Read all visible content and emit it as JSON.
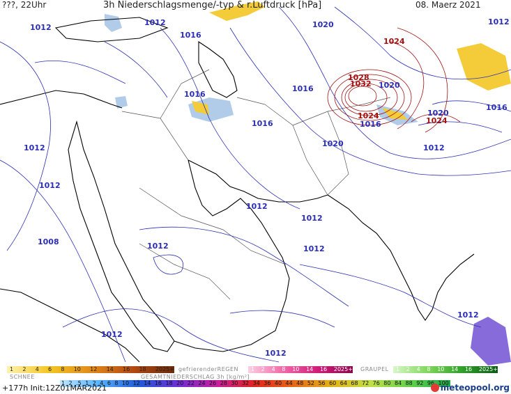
{
  "header": {
    "left": "???, 22Uhr",
    "title": "3h Niederschlagsmenge/-typ & r.Luftdruck [hPa]",
    "date": "08. Maerz 2021"
  },
  "isobar_labels": [
    {
      "text": "1012",
      "color": "#2b2fb5"
    },
    {
      "text": "1012",
      "color": "#2b2fb5"
    },
    {
      "text": "1016",
      "color": "#2b2fb5"
    },
    {
      "text": "1020",
      "color": "#2b2fb5"
    },
    {
      "text": "1024",
      "color": "#a31010"
    },
    {
      "text": "1012",
      "color": "#2b2fb5"
    },
    {
      "text": "1016",
      "color": "#2b2fb5"
    },
    {
      "text": "1028",
      "color": "#a31010"
    },
    {
      "text": "1032",
      "color": "#a31010"
    },
    {
      "text": "1020",
      "color": "#2b2fb5"
    },
    {
      "text": "1016",
      "color": "#2b2fb5"
    },
    {
      "text": "1016",
      "color": "#2b2fb5"
    },
    {
      "text": "1024",
      "color": "#a31010"
    },
    {
      "text": "1020",
      "color": "#2b2fb5"
    },
    {
      "text": "1016",
      "color": "#2b2fb5"
    },
    {
      "text": "1024",
      "color": "#a31010"
    },
    {
      "text": "1016",
      "color": "#2b2fb5"
    },
    {
      "text": "1012",
      "color": "#2b2fb5"
    },
    {
      "text": "1012",
      "color": "#2b2fb5"
    },
    {
      "text": "1020",
      "color": "#2b2fb5"
    },
    {
      "text": "1012",
      "color": "#2b2fb5"
    },
    {
      "text": "1012",
      "color": "#2b2fb5"
    },
    {
      "text": "1012",
      "color": "#2b2fb5"
    },
    {
      "text": "1008",
      "color": "#2b2fb5"
    },
    {
      "text": "1012",
      "color": "#2b2fb5"
    },
    {
      "text": "1012",
      "color": "#2b2fb5"
    },
    {
      "text": "1012",
      "color": "#2b2fb5"
    },
    {
      "text": "1012",
      "color": "#2b2fb5"
    },
    {
      "text": "1012",
      "color": "#2b2fb5"
    }
  ],
  "legend": {
    "snow_label": "SCHNEE",
    "snow_scale": [
      "1",
      "2",
      "4",
      "6",
      "8",
      "10",
      "12",
      "14",
      "16",
      "18",
      "2025+"
    ],
    "freezing_rain_label": "gefrierenderREGEN",
    "freezing_rain_scale": [
      "1",
      "2",
      "4",
      "8",
      "10",
      "14",
      "16",
      "2025+"
    ],
    "graupel_label": "GRAUPEL",
    "graupel_scale": [
      "1",
      "2",
      "4",
      "8",
      "10",
      "14",
      "16",
      "2025+"
    ],
    "total_label": "GESAMTNIEDERSCHLAG 3h [kg/m²]",
    "total_scale": [
      "1",
      "2",
      ".5",
      "1",
      "2",
      "4",
      "6",
      "8",
      "10",
      "12",
      "14",
      "16",
      "18",
      "20",
      "22",
      "24",
      "26",
      "28",
      "30",
      "32",
      "34",
      "36",
      "40",
      "44",
      "48",
      "52",
      "56",
      "60",
      "64",
      "68",
      "72",
      "76",
      "80",
      "84",
      "88",
      "92",
      "96",
      "100"
    ]
  },
  "footer": {
    "run": "+177h  Init:12Z01MAR2021",
    "logo": "meteopool.org"
  },
  "colors": {
    "isobar_low": "#2b2fb5",
    "isobar_high": "#a31010",
    "coast": "#000000",
    "border": "#555555",
    "snow": "#f3c623",
    "rain": "#a9c7e6",
    "storm": "#7a5bd6"
  }
}
